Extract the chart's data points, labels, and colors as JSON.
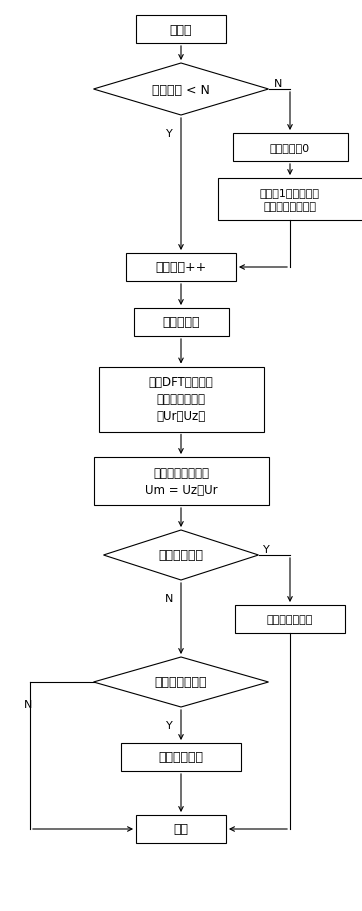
{
  "background_color": "#ffffff",
  "font_size": 9,
  "nodes": {
    "init": {
      "label": "初始化"
    },
    "diamond1": {
      "label": "采样计数 < N"
    },
    "clear": {
      "label": "采样计数清0"
    },
    "adjust": {
      "label": "根据前1周计算频率\n调整本周采样频率"
    },
    "count_inc": {
      "label": "采样计数++"
    },
    "collect": {
      "label": "采集新数据"
    },
    "dft": {
      "label": "采用DFT计算电压\n通道的实、虚部\n（Ur，Uz）"
    },
    "construct": {
      "label": "构造一个新的信号\nUm = Uz＊Ur"
    },
    "diamond2": {
      "label": "电压幅值过低"
    },
    "restore": {
      "label": "频率恢复默认值"
    },
    "diamond3": {
      "label": "是否正向过零点"
    },
    "calc_freq": {
      "label": "计算新的频率"
    },
    "end": {
      "label": "结束"
    }
  },
  "lw": 0.8,
  "arrow_lw": 0.8
}
